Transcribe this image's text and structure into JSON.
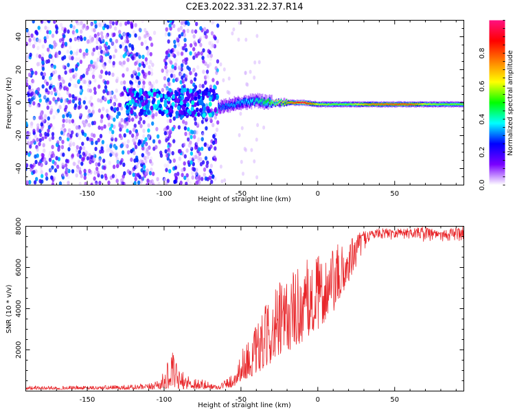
{
  "figure_title": "C2E3.2022.331.22.37.R14",
  "chart_data": [
    {
      "type": "heatmap",
      "title": "C2E3.2022.331.22.37.R14",
      "xlabel": "Height of straight line (km)",
      "ylabel": "Frequency (Hz)",
      "xlim": [
        -190,
        95
      ],
      "ylim": [
        -50,
        50
      ],
      "xticks": [
        -150,
        -100,
        -50,
        0,
        50
      ],
      "yticks": [
        -40,
        -20,
        0,
        20,
        40
      ],
      "colorbar": {
        "label": "Normalized spectral amplitude",
        "range": [
          0,
          1
        ],
        "ticks": [
          0.0,
          0.2,
          0.4,
          0.6,
          0.8
        ],
        "colormap": [
          "#ffffff",
          "#7a00ff",
          "#0000ff",
          "#00ffff",
          "#00ff00",
          "#ffff00",
          "#ff8000",
          "#ff0000",
          "#ff1080"
        ]
      },
      "ridge": {
        "description": "spectral peak frequency vs height",
        "x": [
          -65,
          -50,
          -40,
          -30,
          -20,
          -10,
          0,
          10,
          20,
          35,
          50,
          60,
          70,
          80,
          95
        ],
        "y": [
          -3,
          0,
          1,
          0,
          0,
          0,
          -1,
          -1,
          -1,
          -1,
          -1,
          -1,
          -1,
          -1,
          -1
        ],
        "peak_amplitude": [
          0.3,
          0.35,
          0.4,
          0.55,
          0.7,
          0.95,
          0.6,
          0.55,
          0.55,
          0.75,
          0.8,
          0.8,
          0.6,
          0.55,
          0.55
        ]
      },
      "noise_region": {
        "x_range": [
          -190,
          -65
        ],
        "typical_amplitude": 0.12
      },
      "grid": false
    },
    {
      "type": "line",
      "xlabel": "Height of straight line (km)",
      "ylabel": "SNR (10 * v/v)",
      "xlim": [
        -190,
        95
      ],
      "ylim": [
        0,
        8000
      ],
      "xticks": [
        -150,
        -100,
        -50,
        0,
        50
      ],
      "yticks": [
        2000,
        4000,
        6000,
        8000
      ],
      "series": [
        {
          "color": "#e8262a",
          "envelope_x": [
            -190,
            -150,
            -110,
            -100,
            -95,
            -90,
            -65,
            -55,
            -50,
            -40,
            -30,
            -20,
            -10,
            0,
            10,
            20,
            30,
            40,
            50,
            60,
            70,
            80,
            95
          ],
          "envelope_low": [
            80,
            80,
            80,
            100,
            150,
            100,
            90,
            200,
            500,
            800,
            1400,
            1900,
            2400,
            3000,
            3800,
            5300,
            6800,
            7300,
            7300,
            7300,
            7200,
            7200,
            7100
          ],
          "envelope_high": [
            250,
            250,
            350,
            900,
            2000,
            1000,
            300,
            900,
            2000,
            3200,
            4800,
            5800,
            6300,
            6600,
            7000,
            7400,
            7800,
            7900,
            7900,
            7900,
            8000,
            7800,
            8000
          ]
        }
      ],
      "grid": false
    }
  ]
}
